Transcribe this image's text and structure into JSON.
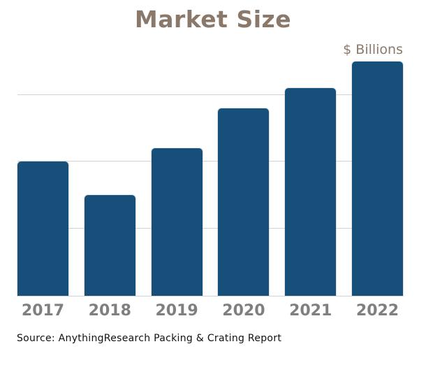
{
  "title": "Market Size",
  "unit_label": "$ Billions",
  "source": "Source: AnythingResearch Packing & Crating Report",
  "colors": {
    "bar": "#16507a",
    "title_text": "#8a796b",
    "unit_text": "#8a796b",
    "axis_label_text": "#7f7f7f",
    "gridline": "#d2d2d2",
    "source_text": "#111111",
    "background": "#ffffff"
  },
  "chart_data": {
    "type": "bar",
    "title": "Market Size",
    "categories": [
      "2017",
      "2018",
      "2019",
      "2020",
      "2021",
      "2022"
    ],
    "values": [
      2.0,
      1.5,
      2.2,
      2.8,
      3.1,
      3.5
    ],
    "xlabel": "",
    "ylabel": "$ Billions",
    "ylim": [
      0,
      3.7
    ],
    "y_gridlines": [
      1,
      2,
      3
    ],
    "y_tick_labels_visible": false,
    "grid": "horizontal",
    "legend": "none"
  }
}
